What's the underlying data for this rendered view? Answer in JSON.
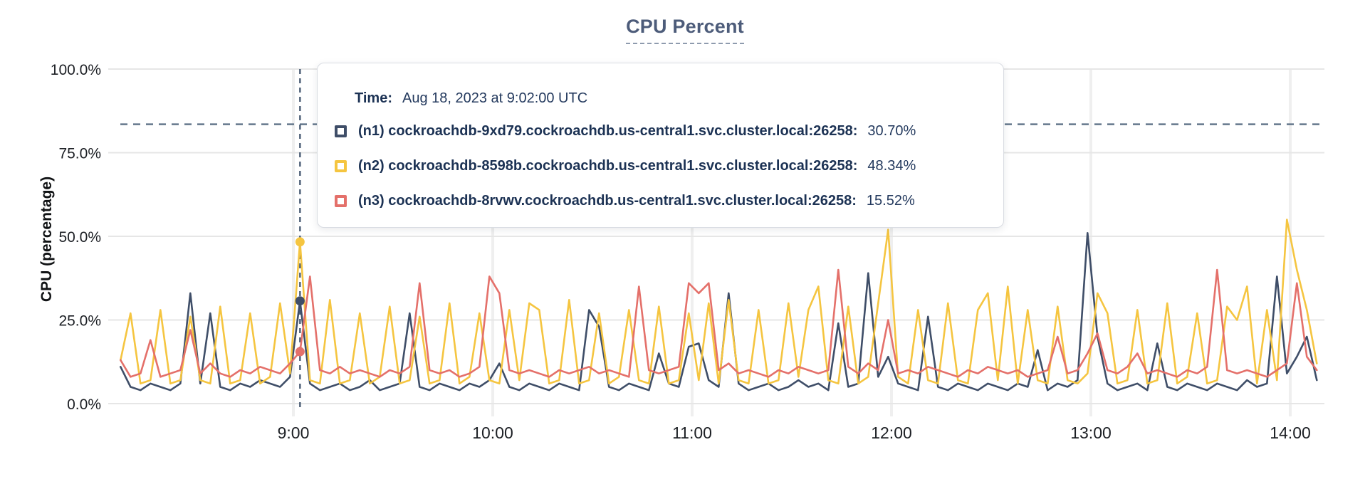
{
  "title": "CPU Percent",
  "y_axis_title": "CPU (percentage)",
  "colors": {
    "n1": "#3f4e68",
    "n2": "#f5c540",
    "n3": "#e4706a",
    "grid_h": "#e6e6e6",
    "grid_v": "#efefef",
    "dashed": "#5d7186",
    "tick_text": "#1c1f24",
    "tooltip_text": "#1c3254"
  },
  "tooltip": {
    "time_label": "Time:",
    "time_value": "Aug 18, 2023 at 9:02:00 UTC",
    "rows": [
      {
        "label": "(n1) cockroachdb-9xd79.cockroachdb.us-central1.svc.cluster.local:26258:",
        "value": "30.70%",
        "color": "#3f4e68"
      },
      {
        "label": "(n2) cockroachdb-8598b.cockroachdb.us-central1.svc.cluster.local:26258:",
        "value": "48.34%",
        "color": "#f5c540"
      },
      {
        "label": "(n3) cockroachdb-8rvwv.cockroachdb.us-central1.svc.cluster.local:26258:",
        "value": "15.52%",
        "color": "#e4706a"
      }
    ]
  },
  "chart_data": {
    "type": "line",
    "title": "CPU Percent",
    "ylabel": "CPU (percentage)",
    "ylim": [
      0,
      100
    ],
    "grid": true,
    "y_ticks": [
      0,
      25,
      50,
      75,
      100
    ],
    "y_tick_labels": [
      "0.0%",
      "25.0%",
      "50.0%",
      "75.0%",
      "100.0%"
    ],
    "x_tick_labels": [
      "9:00",
      "10:00",
      "11:00",
      "12:00",
      "13:00",
      "14:00"
    ],
    "x_tick_hours": [
      9,
      10,
      11,
      12,
      13,
      14
    ],
    "x_start_time": "8:08",
    "x_step_minutes": 3,
    "threshold_value": 83.5,
    "marker": {
      "hour": 9,
      "minute": 2,
      "values": [
        30.7,
        48.34,
        15.52
      ]
    },
    "series": [
      {
        "name": "cockroachdb-9xd79.cockroachdb.us-central1.svc.cluster.local:26258",
        "node": "n1",
        "color": "#3f4e68",
        "values": [
          11,
          5,
          4,
          6,
          5,
          4,
          6,
          33,
          6,
          27,
          5,
          4,
          6,
          5,
          7,
          6,
          5,
          8,
          30.7,
          6,
          4,
          5,
          6,
          4,
          5,
          7,
          4,
          5,
          6,
          27,
          5,
          4,
          6,
          5,
          4,
          6,
          5,
          7,
          12,
          5,
          4,
          6,
          5,
          4,
          6,
          5,
          4,
          28,
          23,
          5,
          4,
          6,
          5,
          4,
          15,
          6,
          5,
          17,
          18,
          7,
          5,
          33,
          6,
          4,
          5,
          6,
          4,
          5,
          7,
          5,
          6,
          4,
          24,
          5,
          6,
          39,
          8,
          14,
          6,
          5,
          4,
          26,
          5,
          4,
          6,
          5,
          4,
          6,
          5,
          4,
          6,
          5,
          16,
          4,
          6,
          5,
          7,
          51,
          20,
          6,
          4,
          5,
          6,
          4,
          18,
          5,
          4,
          6,
          5,
          4,
          6,
          5,
          4,
          7,
          5,
          6,
          38,
          9,
          14,
          20,
          7
        ]
      },
      {
        "name": "cockroachdb-8598b.cockroachdb.us-central1.svc.cluster.local:26258",
        "node": "n2",
        "color": "#f5c540",
        "values": [
          13,
          27,
          6,
          7,
          28,
          6,
          7,
          26,
          7,
          6,
          29,
          6,
          7,
          27,
          6,
          8,
          30,
          9,
          48.34,
          7,
          6,
          31,
          6,
          7,
          27,
          6,
          8,
          29,
          6,
          7,
          26,
          6,
          7,
          30,
          6,
          8,
          27,
          7,
          6,
          28,
          7,
          30,
          28,
          6,
          7,
          31,
          6,
          7,
          27,
          6,
          8,
          28,
          7,
          6,
          29,
          6,
          7,
          27,
          7,
          30,
          6,
          31,
          7,
          6,
          28,
          6,
          7,
          30,
          8,
          28,
          35,
          7,
          6,
          29,
          6,
          8,
          30,
          52,
          8,
          6,
          28,
          7,
          6,
          30,
          7,
          6,
          28,
          33,
          7,
          35,
          6,
          28,
          7,
          6,
          29,
          7,
          6,
          9,
          33,
          27,
          6,
          7,
          28,
          6,
          7,
          30,
          6,
          8,
          27,
          6,
          7,
          29,
          25,
          35,
          6,
          28,
          7,
          55,
          40,
          28,
          12
        ]
      },
      {
        "name": "cockroachdb-8rvwv.cockroachdb.us-central1.svc.cluster.local:26258",
        "node": "n3",
        "color": "#e4706a",
        "values": [
          13,
          8,
          9,
          19,
          8,
          9,
          10,
          22,
          9,
          12,
          9,
          8,
          10,
          9,
          11,
          10,
          9,
          12,
          15.52,
          38,
          10,
          9,
          11,
          9,
          10,
          9,
          8,
          10,
          9,
          11,
          36,
          10,
          9,
          10,
          8,
          9,
          11,
          38,
          33,
          10,
          9,
          10,
          9,
          8,
          10,
          9,
          10,
          11,
          9,
          10,
          9,
          8,
          35,
          10,
          9,
          10,
          11,
          36,
          33,
          36,
          10,
          12,
          9,
          10,
          9,
          8,
          10,
          9,
          11,
          10,
          9,
          10,
          40,
          11,
          9,
          12,
          10,
          25,
          9,
          10,
          9,
          11,
          10,
          9,
          8,
          10,
          9,
          11,
          10,
          9,
          10,
          8,
          9,
          10,
          20,
          9,
          10,
          15,
          21,
          10,
          9,
          11,
          15,
          9,
          10,
          9,
          8,
          10,
          9,
          11,
          40,
          10,
          9,
          10,
          9,
          8,
          10,
          12,
          36,
          14,
          10
        ]
      }
    ]
  }
}
